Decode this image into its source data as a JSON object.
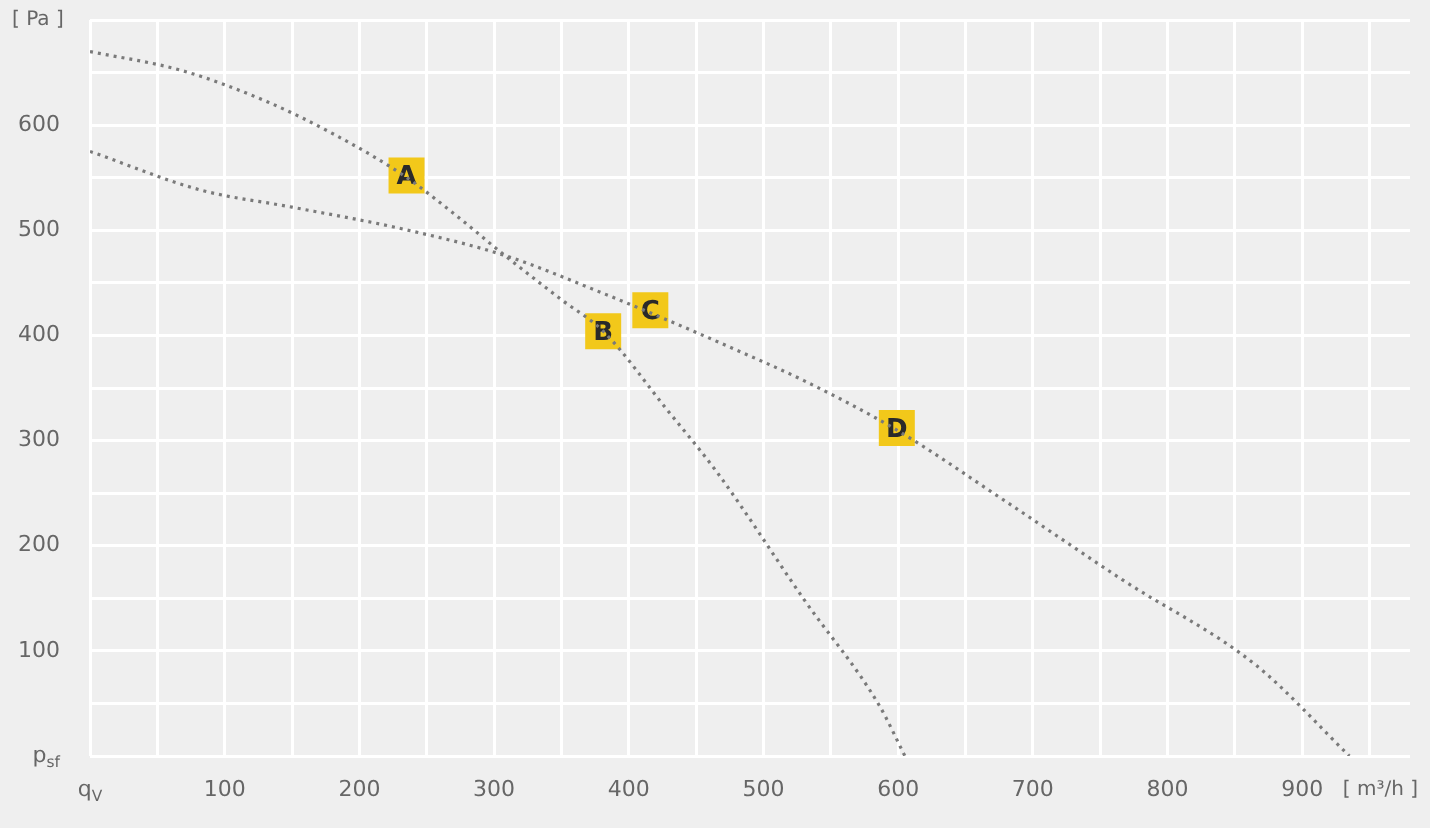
{
  "chart_data": {
    "type": "line",
    "ylabel": "[ Pa ]",
    "xlabel": "[ m³/h ]",
    "xlim": [
      0,
      980
    ],
    "ylim": [
      0,
      700
    ],
    "xticks": [
      {
        "value": 0,
        "label": "q$_{V}$"
      },
      {
        "value": 50,
        "label": null
      },
      100,
      {
        "value": 150,
        "label": null
      },
      200,
      {
        "value": 250,
        "label": null
      },
      300,
      {
        "value": 350,
        "label": null
      },
      400,
      {
        "value": 450,
        "label": null
      },
      500,
      {
        "value": 550,
        "label": null
      },
      600,
      {
        "value": 650,
        "label": null
      },
      700,
      {
        "value": 750,
        "label": null
      },
      800,
      {
        "value": 850,
        "label": null
      },
      900,
      {
        "value": 950,
        "label": null
      }
    ],
    "yticks": [
      {
        "value": 0,
        "label": "p$_{sf}$"
      },
      {
        "value": 50,
        "label": null
      },
      100,
      {
        "value": 150,
        "label": null
      },
      200,
      {
        "value": 250,
        "label": null
      },
      300,
      {
        "value": 350,
        "label": null
      },
      400,
      {
        "value": 450,
        "label": null
      },
      500,
      {
        "value": 550,
        "label": null
      },
      600,
      {
        "value": 650,
        "label": null
      },
      {
        "value": 700,
        "label": null
      }
    ],
    "grid": true,
    "marker": "none",
    "line_style": "dotted",
    "legend": false,
    "series": [
      {
        "color": "#7a7a7a",
        "x": [
          0,
          68,
          132,
          183,
          233,
          270,
          308,
          350,
          381,
          428,
          466,
          530,
          586,
          605
        ],
        "values": [
          670,
          652,
          622,
          590,
          552,
          516,
          476,
          434,
          404,
          330,
          269,
          149,
          48,
          0
        ]
      },
      {
        "color": "#7a7a7a",
        "x": [
          0,
          83,
          150,
          233,
          308,
          381,
          428,
          473,
          530,
          599,
          680,
          766,
          866,
          935
        ],
        "values": [
          575,
          538,
          522,
          501,
          476,
          440,
          415,
          390,
          357,
          310,
          242,
          168,
          86,
          0
        ]
      }
    ],
    "annotations": [
      {
        "text": "A",
        "x": 235,
        "y": 552
      },
      {
        "text": "B",
        "x": 381,
        "y": 404
      },
      {
        "text": "C",
        "x": 416,
        "y": 424
      },
      {
        "text": "D",
        "x": 599,
        "y": 312
      }
    ]
  }
}
